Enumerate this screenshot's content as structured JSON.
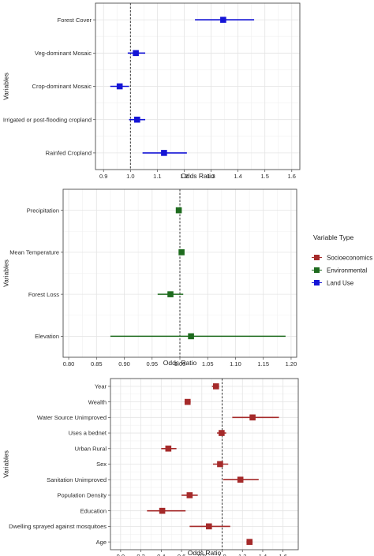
{
  "legend": {
    "title": "Variable Type",
    "items": [
      {
        "label": "Socioeconomics",
        "color": "#a52a2a"
      },
      {
        "label": "Environmental",
        "color": "#1e6b1e"
      },
      {
        "label": "Land Use",
        "color": "#1515d6"
      }
    ]
  },
  "chart_data": [
    {
      "type": "scatter",
      "subtype": "forest-plot",
      "xlabel": "Odds Ratio",
      "ylabel": "Variables",
      "xlim": [
        0.87,
        1.63
      ],
      "xticks": [
        0.9,
        1.0,
        1.1,
        1.2,
        1.3,
        1.4,
        1.5,
        1.6
      ],
      "xtick_labels": [
        "0.9",
        "1.0",
        "1.1",
        "1.2",
        "1.3",
        "1.4",
        "1.5",
        "1.6"
      ],
      "reference_line": 1.0,
      "grid": true,
      "color": "#1515d6",
      "categories": [
        "Forest Cover",
        "Veg-dominant Mosaic",
        "Crop-dominant Mosaic",
        "Irrigated or post-flooding cropland",
        "Rainfed Cropland"
      ],
      "estimates": [
        1.345,
        1.02,
        0.96,
        1.025,
        1.125
      ],
      "ci_lower": [
        1.24,
        0.99,
        0.925,
        0.995,
        1.045
      ],
      "ci_upper": [
        1.46,
        1.055,
        0.995,
        1.055,
        1.21
      ]
    },
    {
      "type": "scatter",
      "subtype": "forest-plot",
      "xlabel": "Odds Ratio",
      "ylabel": "Variables",
      "xlim": [
        0.79,
        1.21
      ],
      "xticks": [
        0.8,
        0.85,
        0.9,
        0.95,
        1.0,
        1.05,
        1.1,
        1.15,
        1.2
      ],
      "xtick_labels": [
        "0.80",
        "0.85",
        "0.90",
        "0.95",
        "1.00",
        "1.05",
        "1.10",
        "1.15",
        "1.20"
      ],
      "reference_line": 1.0,
      "grid": true,
      "color": "#1e6b1e",
      "categories": [
        "Precipitation",
        "Mean Temperature",
        "Forest Loss",
        "Elevation"
      ],
      "estimates": [
        0.998,
        1.003,
        0.983,
        1.02
      ],
      "ci_lower": [
        0.996,
        1.0,
        0.96,
        0.875
      ],
      "ci_upper": [
        1.0,
        1.006,
        1.006,
        1.19
      ]
    },
    {
      "type": "scatter",
      "subtype": "forest-plot",
      "xlabel": "Odds Ratio",
      "ylabel": "Variables",
      "xlim": [
        -0.1,
        1.75
      ],
      "xticks": [
        0.0,
        0.2,
        0.4,
        0.6,
        0.8,
        1.0,
        1.2,
        1.4,
        1.6
      ],
      "xtick_labels": [
        "0.0",
        "0.2",
        "0.4",
        "0.6",
        "0.8",
        "1.0",
        "1.2",
        "1.4",
        "1.6"
      ],
      "reference_line": 1.0,
      "grid": true,
      "color": "#a52a2a",
      "categories": [
        "Year",
        "Wealth",
        "Water Source Unimproved",
        "Uses a bednet",
        "Urban Rural",
        "Sex",
        "Sanitation Unimproved",
        "Population Density",
        "Education",
        "Dwelling sprayed against mosquitoes",
        "Age"
      ],
      "estimates": [
        0.94,
        0.66,
        1.3,
        0.995,
        0.47,
        0.98,
        1.18,
        0.68,
        0.41,
        0.87,
        1.27
      ],
      "ci_lower": [
        0.9,
        0.63,
        1.1,
        0.95,
        0.4,
        0.91,
        1.01,
        0.6,
        0.26,
        0.68,
        1.24
      ],
      "ci_upper": [
        0.97,
        0.69,
        1.56,
        1.04,
        0.55,
        1.06,
        1.36,
        0.76,
        0.64,
        1.08,
        1.3
      ]
    }
  ]
}
